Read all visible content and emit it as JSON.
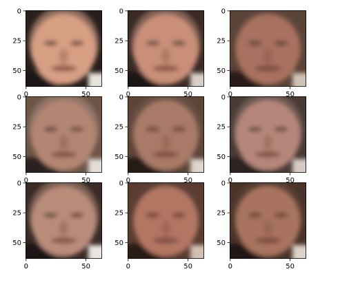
{
  "figure": {
    "rows": 3,
    "cols": 3,
    "image_size": [
      64,
      64
    ],
    "xticks": [
      0,
      50
    ],
    "yticks": [
      0,
      25,
      50
    ],
    "panels": [
      {
        "skin": "#d79f84",
        "hair": "#8a6a5a",
        "background": "#2a1f1c",
        "shirt": "#1a1414",
        "corner": "#e8e2dc"
      },
      {
        "skin": "#c98f78",
        "hair": "#7d5f52",
        "background": "#3b2a25",
        "shirt": "#1d1616",
        "corner": "#d9cfc6"
      },
      {
        "skin": "#a9715e",
        "hair": "#5e463c",
        "background": "#5a4337",
        "shirt": "#2b1e1a",
        "corner": "#cfc2b5"
      },
      {
        "skin": "#b38573",
        "hair": "#8f7468",
        "background": "#6e5546",
        "shirt": "#2a2020",
        "corner": "#e4ddd7"
      },
      {
        "skin": "#a97a67",
        "hair": "#6b5147",
        "background": "#5e4538",
        "shirt": "#261b18",
        "corner": "#ddd5ce"
      },
      {
        "skin": "#b5877a",
        "hair": "#6f5a55",
        "background": "#4a3a35",
        "shirt": "#2e2222",
        "corner": "#d6cbc4"
      },
      {
        "skin": "#b98c7a",
        "hair": "#7a5e52",
        "background": "#3a2b26",
        "shirt": "#1e1716",
        "corner": "#ebe5df"
      },
      {
        "skin": "#b27664",
        "hair": "#5c3f35",
        "background": "#5b3d30",
        "shirt": "#2a1c18",
        "corner": "#cfc0b3"
      },
      {
        "skin": "#a8735f",
        "hair": "#5a4036",
        "background": "#4b3429",
        "shirt": "#241915",
        "corner": "#dcd2c8"
      }
    ]
  }
}
